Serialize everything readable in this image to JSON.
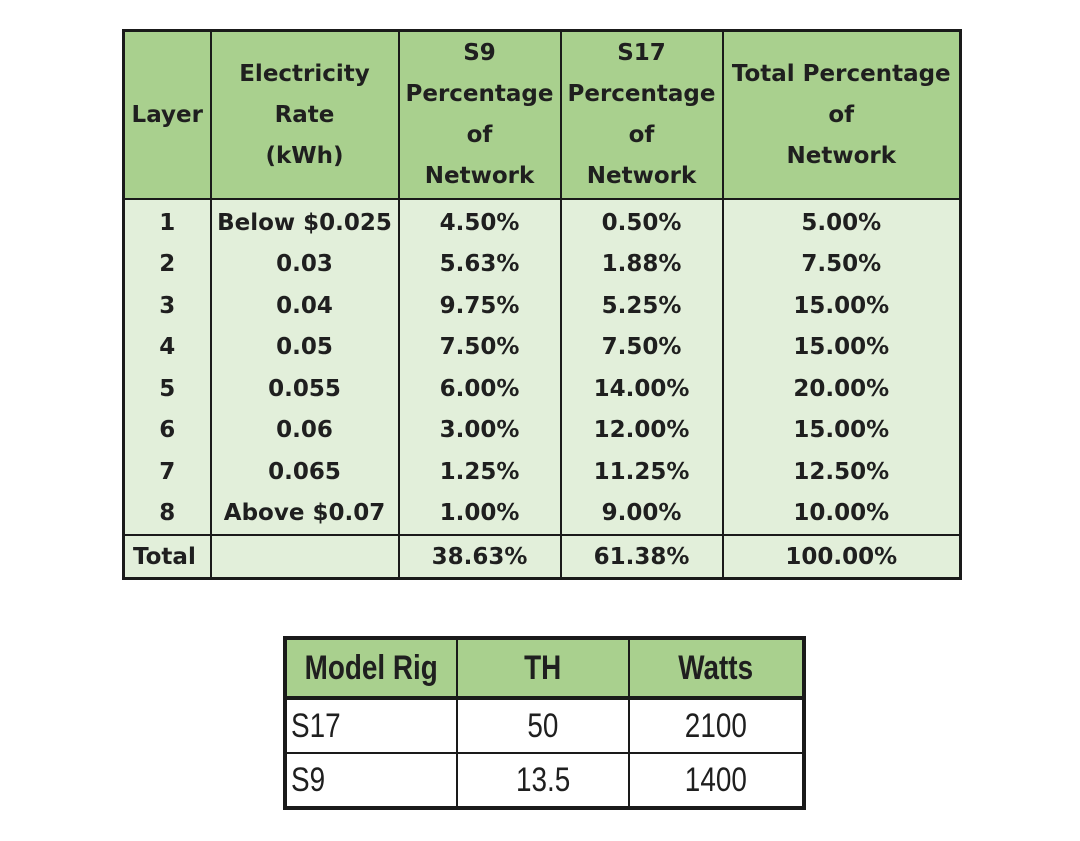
{
  "network_table": {
    "headers": {
      "layer": "Layer",
      "rate_line1": "Electricity",
      "rate_line2": "Rate",
      "rate_line3": "(kWh)",
      "s9_line1": "S9",
      "s9_line2": "Percentage",
      "s9_line3": "of",
      "s9_line4": "Network",
      "s17_line1": "S17",
      "s17_line2": "Percentage",
      "s17_line3": "of",
      "s17_line4": "Network",
      "total_line1": "Total Percentage",
      "total_line2": "of",
      "total_line3": "Network"
    },
    "rows": [
      {
        "layer": "1",
        "rate": "Below $0.025",
        "s9": "4.50%",
        "s17": "0.50%",
        "total": "5.00%"
      },
      {
        "layer": "2",
        "rate": "0.03",
        "s9": "5.63%",
        "s17": "1.88%",
        "total": "7.50%"
      },
      {
        "layer": "3",
        "rate": "0.04",
        "s9": "9.75%",
        "s17": "5.25%",
        "total": "15.00%"
      },
      {
        "layer": "4",
        "rate": "0.05",
        "s9": "7.50%",
        "s17": "7.50%",
        "total": "15.00%"
      },
      {
        "layer": "5",
        "rate": "0.055",
        "s9": "6.00%",
        "s17": "14.00%",
        "total": "20.00%"
      },
      {
        "layer": "6",
        "rate": "0.06",
        "s9": "3.00%",
        "s17": "12.00%",
        "total": "15.00%"
      },
      {
        "layer": "7",
        "rate": "0.065",
        "s9": "1.25%",
        "s17": "11.25%",
        "total": "12.50%"
      },
      {
        "layer": "8",
        "rate": "Above $0.07",
        "s9": "1.00%",
        "s17": "9.00%",
        "total": "10.00%"
      }
    ],
    "total_row": {
      "label": "Total",
      "rate": "",
      "s9": "38.63%",
      "s17": "61.38%",
      "total": "100.00%"
    }
  },
  "rig_table": {
    "headers": {
      "model": "Model Rig",
      "th": "TH",
      "watts": "Watts"
    },
    "rows": [
      {
        "model": "S17",
        "th": "50",
        "watts": "2100"
      },
      {
        "model": "S9",
        "th": "13.5",
        "watts": "1400"
      }
    ]
  },
  "colors": {
    "header_green": "#a9d08e",
    "body_green": "#e2efda",
    "border": "#1a1a1a"
  }
}
